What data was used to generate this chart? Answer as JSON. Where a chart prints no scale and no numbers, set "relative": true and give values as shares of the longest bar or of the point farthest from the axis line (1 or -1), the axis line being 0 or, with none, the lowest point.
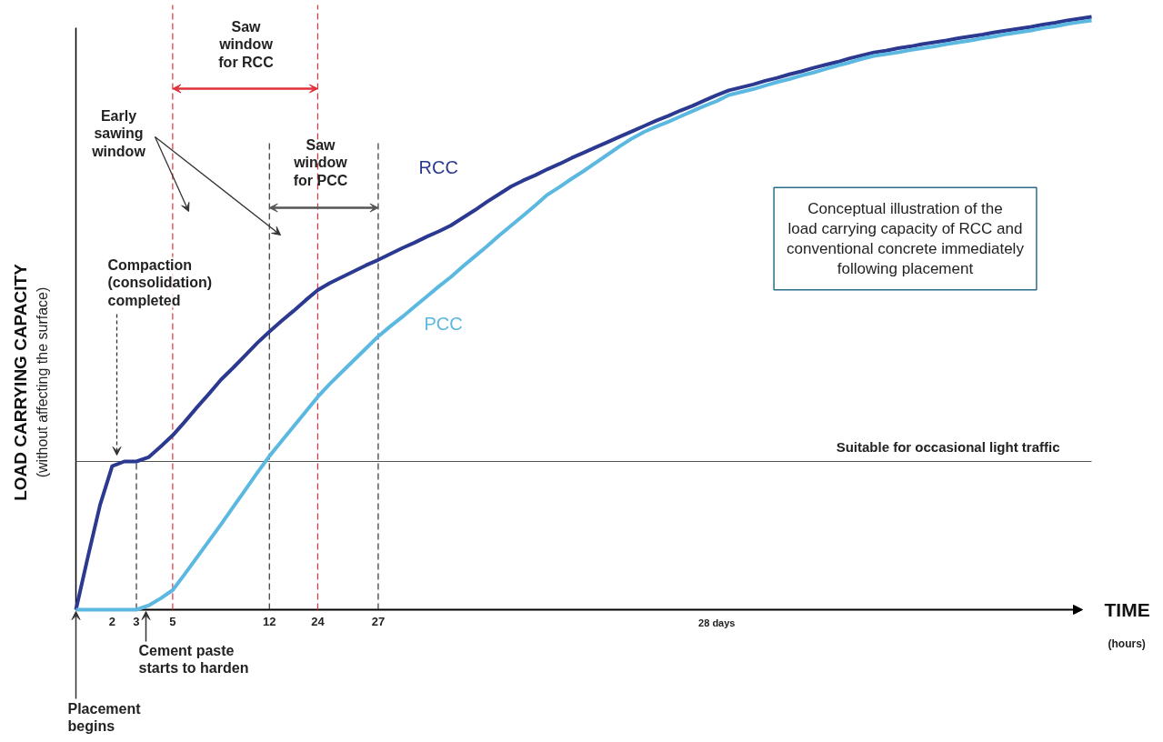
{
  "chart_data": {
    "type": "line",
    "relative": true,
    "xlabel": "TIME",
    "ylabel": "LOAD CARRYING CAPACITY",
    "categories": [
      null,
      null,
      null,
      "2",
      null,
      "3",
      null,
      null,
      "5",
      null,
      null,
      null,
      null,
      null,
      null,
      null,
      "12",
      null,
      null,
      null,
      "24",
      null,
      null,
      null,
      null,
      "27",
      null,
      null,
      null,
      null,
      null,
      null,
      null,
      null,
      null,
      null,
      null,
      null,
      null,
      null,
      null,
      null,
      null,
      null,
      null,
      null,
      null,
      null,
      null,
      null,
      null,
      null,
      null,
      "28 days",
      null,
      null,
      null,
      null,
      null,
      null,
      null,
      null,
      null,
      null,
      null,
      null,
      null,
      null,
      null,
      null,
      null,
      null,
      null,
      null,
      null,
      null,
      null,
      null,
      null,
      null,
      null,
      null,
      null,
      null,
      null
    ],
    "tick_labels": "x",
    "grid": false,
    "marker": "none",
    "line_style": "solid",
    "series": [
      {
        "name": "RCC",
        "color": "#2b3990",
        "values": [
          0,
          0.09,
          0.177,
          0.242,
          0.25,
          0.25,
          0.257,
          0.275,
          0.294,
          0.317,
          0.341,
          0.364,
          0.388,
          0.408,
          0.429,
          0.45,
          0.469,
          0.487,
          0.504,
          0.522,
          0.539,
          0.551,
          0.561,
          0.571,
          0.581,
          0.59,
          0.6,
          0.61,
          0.619,
          0.629,
          0.638,
          0.648,
          0.661,
          0.674,
          0.688,
          0.701,
          0.714,
          0.724,
          0.733,
          0.743,
          0.752,
          0.762,
          0.771,
          0.78,
          0.789,
          0.798,
          0.807,
          0.816,
          0.825,
          0.833,
          0.842,
          0.85,
          0.859,
          0.868,
          0.876,
          0.881,
          0.886,
          0.892,
          0.897,
          0.903,
          0.908,
          0.914,
          0.919,
          0.924,
          0.93,
          0.935,
          0.94,
          0.943,
          0.947,
          0.95,
          0.954,
          0.957,
          0.96,
          0.964,
          0.967,
          0.97,
          0.974,
          0.977,
          0.98,
          0.983,
          0.987,
          0.99,
          0.994,
          0.997,
          1.0
        ]
      },
      {
        "name": "PCC",
        "color": "#5bb8e0",
        "values": [
          0,
          0,
          0,
          0,
          0,
          0,
          0.007,
          0.019,
          0.033,
          0.06,
          0.088,
          0.116,
          0.144,
          0.173,
          0.202,
          0.231,
          0.259,
          0.284,
          0.309,
          0.334,
          0.359,
          0.381,
          0.401,
          0.421,
          0.441,
          0.461,
          0.478,
          0.494,
          0.511,
          0.528,
          0.545,
          0.561,
          0.579,
          0.596,
          0.613,
          0.631,
          0.648,
          0.665,
          0.682,
          0.7,
          0.713,
          0.727,
          0.74,
          0.754,
          0.768,
          0.782,
          0.795,
          0.806,
          0.815,
          0.823,
          0.832,
          0.841,
          0.85,
          0.858,
          0.868,
          0.873,
          0.878,
          0.884,
          0.89,
          0.895,
          0.901,
          0.906,
          0.912,
          0.918,
          0.923,
          0.929,
          0.934,
          0.937,
          0.94,
          0.944,
          0.947,
          0.95,
          0.954,
          0.957,
          0.96,
          0.964,
          0.967,
          0.971,
          0.974,
          0.977,
          0.981,
          0.984,
          0.988,
          0.991,
          0.994
        ]
      }
    ],
    "ref_lines": [
      {
        "axis": "x",
        "value": "3",
        "label": null,
        "color": "#333333",
        "line_style": "dashed"
      },
      {
        "axis": "x",
        "value": "5",
        "label": null,
        "color": "#e0303a",
        "line_style": "dashed"
      },
      {
        "axis": "x",
        "value": "12",
        "label": null,
        "color": "#333333",
        "line_style": "dashed"
      },
      {
        "axis": "x",
        "value": "24",
        "label": null,
        "color": "#e0303a",
        "line_style": "dashed"
      },
      {
        "axis": "x",
        "value": "27",
        "label": null,
        "color": "#333333",
        "line_style": "dashed"
      },
      {
        "axis": "y",
        "value": 0.25,
        "label": "Suitable for occasional light traffic",
        "color": "#555555",
        "line_style": "solid"
      }
    ],
    "annotations": [
      "Saw\nwindow\nfor RCC",
      "Saw\nwindow\nfor PCC",
      "Early\nsawing\nwindow",
      "Compaction\n(consolidation)\ncompleted",
      "Cement paste\nstarts to harden",
      "Placement\nbegins",
      "(without affecting the surface)",
      "(hours)",
      "Conceptual illustration of the\nload carrying capacity of RCC and\nconventional concrete immediately\nfollowing placement"
    ]
  }
}
